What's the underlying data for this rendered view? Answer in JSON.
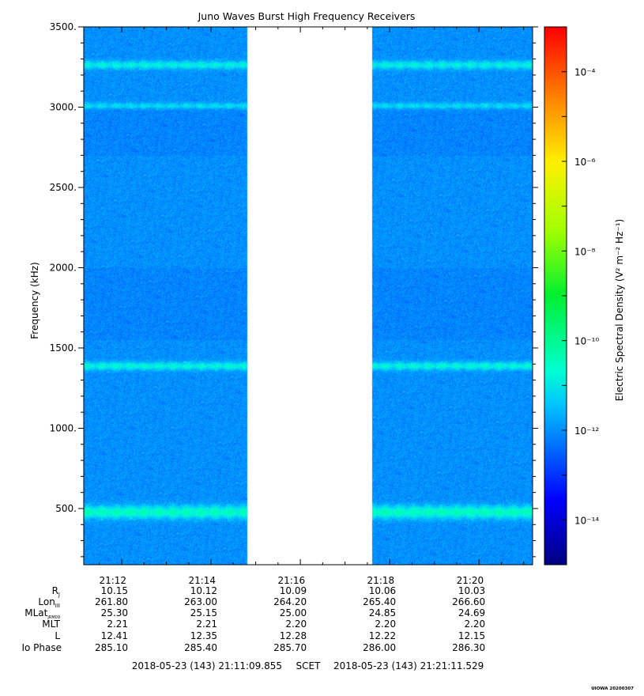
{
  "chart_data": {
    "type": "heatmap",
    "title": "Juno Waves Burst High Frequency Receivers",
    "ylabel": "Frequency (kHz)",
    "ylim": [
      150,
      3500
    ],
    "y_ticks": [
      {
        "value": 500,
        "label": "500."
      },
      {
        "value": 1000,
        "label": "1000."
      },
      {
        "value": 1500,
        "label": "1500."
      },
      {
        "value": 2000,
        "label": "2000."
      },
      {
        "value": 2500,
        "label": "2500."
      },
      {
        "value": 3000,
        "label": "3000."
      },
      {
        "value": 3500,
        "label": "3500."
      }
    ],
    "xlim_minutes": [
      671.15,
      681.2
    ],
    "x_ticks": [
      {
        "value": 672,
        "label": "21:12"
      },
      {
        "value": 674,
        "label": "21:14"
      },
      {
        "value": 676,
        "label": "21:16"
      },
      {
        "value": 678,
        "label": "21:18"
      },
      {
        "value": 680,
        "label": "21:20"
      }
    ],
    "data_gap_minutes": [
      674.8,
      677.6
    ],
    "background_level_exp": -12,
    "emission_bands": [
      {
        "freq": 480,
        "width": 40,
        "level_exp": -10.5
      },
      {
        "freq": 1390,
        "width": 25,
        "level_exp": -10.8
      },
      {
        "freq": 3010,
        "width": 20,
        "level_exp": -11.2
      },
      {
        "freq": 3265,
        "width": 25,
        "level_exp": -10.9
      }
    ],
    "colorbar": {
      "label": "Electric Spectral Density (V² m⁻² Hz⁻¹)",
      "range_exp": [
        -15,
        -3
      ],
      "ticks": [
        {
          "exp": -14,
          "label": "10⁻¹⁴"
        },
        {
          "exp": -12,
          "label": "10⁻¹²"
        },
        {
          "exp": -10,
          "label": "10⁻¹⁰"
        },
        {
          "exp": -8,
          "label": "10⁻⁸"
        },
        {
          "exp": -6,
          "label": "10⁻⁶"
        },
        {
          "exp": -4,
          "label": "10⁻⁴"
        }
      ]
    },
    "ephemeris": {
      "labels": [
        "R",
        "Lon",
        "MLat",
        "MLT",
        "L",
        "Io Phase"
      ],
      "label_subscripts": [
        "J",
        "III",
        "JRM09",
        "",
        "",
        ""
      ],
      "columns": [
        {
          "time": "21:12",
          "values": [
            "10.15",
            "261.80",
            "25.30",
            "2.21",
            "12.41",
            "285.10"
          ]
        },
        {
          "time": "21:14",
          "values": [
            "10.12",
            "263.00",
            "25.15",
            "2.21",
            "12.35",
            "285.40"
          ]
        },
        {
          "time": "21:16",
          "values": [
            "10.09",
            "264.20",
            "25.00",
            "2.20",
            "12.28",
            "285.70"
          ]
        },
        {
          "time": "21:18",
          "values": [
            "10.06",
            "265.40",
            "24.85",
            "2.20",
            "12.22",
            "286.00"
          ]
        },
        {
          "time": "21:20",
          "values": [
            "10.03",
            "266.60",
            "24.69",
            "2.20",
            "12.15",
            "286.30"
          ]
        }
      ]
    },
    "time_range": {
      "start": "2018-05-23 (143) 21:11:09.855",
      "scet": "SCET",
      "end": "2018-05-23 (143) 21:21:11.529"
    },
    "credit": "UIOWA 20200307"
  }
}
